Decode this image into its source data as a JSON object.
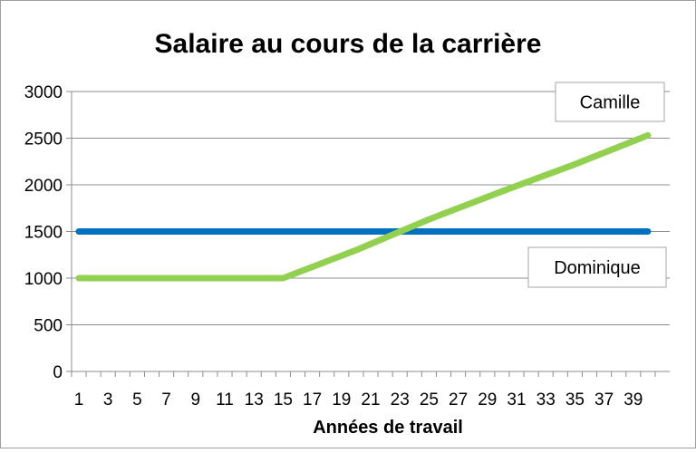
{
  "chart_data": {
    "type": "line",
    "title": "Salaire au cours de la carrière",
    "xlabel": "Années de travail",
    "ylabel": "",
    "x_tick_labels": [
      "1",
      "3",
      "5",
      "7",
      "9",
      "11",
      "13",
      "15",
      "17",
      "19",
      "21",
      "23",
      "25",
      "27",
      "29",
      "31",
      "33",
      "35",
      "37",
      "39"
    ],
    "y_tick_labels": [
      "0",
      "500",
      "1000",
      "1500",
      "2000",
      "2500",
      "3000"
    ],
    "xlim": [
      1,
      40
    ],
    "ylim": [
      0,
      3000
    ],
    "grid": true,
    "series": [
      {
        "name": "Dominique",
        "color": "#0070c0",
        "x": [
          1,
          40
        ],
        "y": [
          1500,
          1500
        ]
      },
      {
        "name": "Camille",
        "color": "#92d050",
        "x": [
          1,
          15,
          20,
          25,
          30,
          35,
          40
        ],
        "y": [
          1000,
          1000,
          1300,
          1630,
          1930,
          2220,
          2530
        ]
      }
    ],
    "annotations": [
      {
        "text": "Camille",
        "series": "Camille"
      },
      {
        "text": "Dominique",
        "series": "Dominique"
      }
    ]
  }
}
